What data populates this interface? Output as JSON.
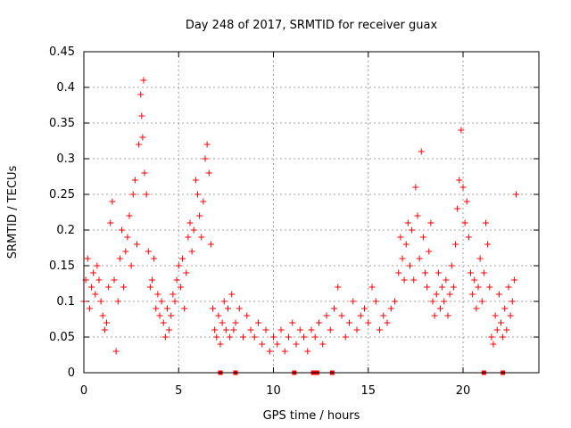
{
  "chart_data": {
    "type": "scatter",
    "title": "Day 248 of 2017, SRMTID for receiver guax",
    "xlabel": "GPS time / hours",
    "ylabel": "SRMTID / TECUs",
    "xlim": [
      0,
      24
    ],
    "ylim": [
      0,
      0.45
    ],
    "x_ticks": [
      0,
      5,
      10,
      15,
      20
    ],
    "y_ticks": [
      0,
      0.05,
      0.1,
      0.15,
      0.2,
      0.25,
      0.3,
      0.35,
      0.4,
      0.45
    ],
    "x_tick_labels": [
      "0",
      "5",
      "10",
      "15",
      "20"
    ],
    "y_tick_labels": [
      "0",
      "0.05",
      "0.1",
      "0.15",
      "0.2",
      "0.25",
      "0.3",
      "0.35",
      "0.4",
      "0.45"
    ],
    "grid": true,
    "marker": "+",
    "color": "#ff0000",
    "square_marker_x": [
      7.2,
      8.0,
      11.1,
      12.1,
      12.3,
      13.1,
      21.1,
      22.1
    ],
    "square_marker_y": 0,
    "series": [
      {
        "name": "SRMTID",
        "points": [
          [
            0.0,
            0.1
          ],
          [
            0.1,
            0.13
          ],
          [
            0.2,
            0.16
          ],
          [
            0.3,
            0.09
          ],
          [
            0.4,
            0.12
          ],
          [
            0.5,
            0.14
          ],
          [
            0.6,
            0.11
          ],
          [
            0.7,
            0.15
          ],
          [
            0.8,
            0.13
          ],
          [
            0.9,
            0.1
          ],
          [
            1.0,
            0.08
          ],
          [
            1.1,
            0.06
          ],
          [
            1.2,
            0.07
          ],
          [
            1.3,
            0.12
          ],
          [
            1.4,
            0.21
          ],
          [
            1.5,
            0.24
          ],
          [
            1.6,
            0.13
          ],
          [
            1.7,
            0.03
          ],
          [
            1.8,
            0.1
          ],
          [
            1.9,
            0.16
          ],
          [
            2.0,
            0.2
          ],
          [
            2.1,
            0.12
          ],
          [
            2.2,
            0.17
          ],
          [
            2.3,
            0.19
          ],
          [
            2.4,
            0.22
          ],
          [
            2.5,
            0.15
          ],
          [
            2.6,
            0.25
          ],
          [
            2.7,
            0.27
          ],
          [
            2.8,
            0.18
          ],
          [
            2.9,
            0.32
          ],
          [
            3.0,
            0.39
          ],
          [
            3.05,
            0.36
          ],
          [
            3.1,
            0.33
          ],
          [
            3.15,
            0.41
          ],
          [
            3.2,
            0.28
          ],
          [
            3.3,
            0.25
          ],
          [
            3.4,
            0.17
          ],
          [
            3.5,
            0.12
          ],
          [
            3.6,
            0.13
          ],
          [
            3.7,
            0.16
          ],
          [
            3.8,
            0.09
          ],
          [
            3.9,
            0.11
          ],
          [
            4.0,
            0.08
          ],
          [
            4.1,
            0.1
          ],
          [
            4.2,
            0.07
          ],
          [
            4.3,
            0.05
          ],
          [
            4.4,
            0.09
          ],
          [
            4.5,
            0.06
          ],
          [
            4.6,
            0.08
          ],
          [
            4.7,
            0.11
          ],
          [
            4.8,
            0.1
          ],
          [
            4.9,
            0.13
          ],
          [
            5.0,
            0.15
          ],
          [
            5.1,
            0.12
          ],
          [
            5.2,
            0.16
          ],
          [
            5.3,
            0.09
          ],
          [
            5.4,
            0.14
          ],
          [
            5.5,
            0.19
          ],
          [
            5.6,
            0.21
          ],
          [
            5.7,
            0.17
          ],
          [
            5.8,
            0.2
          ],
          [
            5.9,
            0.27
          ],
          [
            6.0,
            0.25
          ],
          [
            6.1,
            0.22
          ],
          [
            6.2,
            0.19
          ],
          [
            6.3,
            0.24
          ],
          [
            6.4,
            0.3
          ],
          [
            6.5,
            0.32
          ],
          [
            6.6,
            0.28
          ],
          [
            6.7,
            0.18
          ],
          [
            6.8,
            0.09
          ],
          [
            6.9,
            0.06
          ],
          [
            7.0,
            0.05
          ],
          [
            7.1,
            0.08
          ],
          [
            7.2,
            0.04
          ],
          [
            7.3,
            0.07
          ],
          [
            7.4,
            0.1
          ],
          [
            7.5,
            0.06
          ],
          [
            7.6,
            0.09
          ],
          [
            7.7,
            0.05
          ],
          [
            7.8,
            0.11
          ],
          [
            7.9,
            0.06
          ],
          [
            8.0,
            0.07
          ],
          [
            8.2,
            0.09
          ],
          [
            8.4,
            0.05
          ],
          [
            8.6,
            0.08
          ],
          [
            8.8,
            0.06
          ],
          [
            9.0,
            0.05
          ],
          [
            9.2,
            0.07
          ],
          [
            9.4,
            0.04
          ],
          [
            9.6,
            0.06
          ],
          [
            9.8,
            0.03
          ],
          [
            10.0,
            0.05
          ],
          [
            10.2,
            0.04
          ],
          [
            10.4,
            0.06
          ],
          [
            10.6,
            0.03
          ],
          [
            10.8,
            0.05
          ],
          [
            11.0,
            0.07
          ],
          [
            11.2,
            0.04
          ],
          [
            11.4,
            0.06
          ],
          [
            11.6,
            0.05
          ],
          [
            11.8,
            0.03
          ],
          [
            12.0,
            0.06
          ],
          [
            12.2,
            0.05
          ],
          [
            12.4,
            0.07
          ],
          [
            12.6,
            0.04
          ],
          [
            12.8,
            0.08
          ],
          [
            13.0,
            0.06
          ],
          [
            13.2,
            0.09
          ],
          [
            13.4,
            0.12
          ],
          [
            13.6,
            0.08
          ],
          [
            13.8,
            0.05
          ],
          [
            14.0,
            0.07
          ],
          [
            14.2,
            0.1
          ],
          [
            14.4,
            0.06
          ],
          [
            14.6,
            0.08
          ],
          [
            14.8,
            0.09
          ],
          [
            15.0,
            0.07
          ],
          [
            15.2,
            0.12
          ],
          [
            15.4,
            0.1
          ],
          [
            15.6,
            0.06
          ],
          [
            15.8,
            0.08
          ],
          [
            16.0,
            0.07
          ],
          [
            16.2,
            0.09
          ],
          [
            16.4,
            0.1
          ],
          [
            16.6,
            0.14
          ],
          [
            16.7,
            0.19
          ],
          [
            16.8,
            0.16
          ],
          [
            16.9,
            0.13
          ],
          [
            17.0,
            0.18
          ],
          [
            17.1,
            0.21
          ],
          [
            17.2,
            0.15
          ],
          [
            17.3,
            0.2
          ],
          [
            17.4,
            0.13
          ],
          [
            17.5,
            0.26
          ],
          [
            17.6,
            0.22
          ],
          [
            17.7,
            0.16
          ],
          [
            17.8,
            0.31
          ],
          [
            17.9,
            0.19
          ],
          [
            18.0,
            0.14
          ],
          [
            18.1,
            0.12
          ],
          [
            18.2,
            0.17
          ],
          [
            18.3,
            0.21
          ],
          [
            18.4,
            0.1
          ],
          [
            18.5,
            0.08
          ],
          [
            18.6,
            0.11
          ],
          [
            18.7,
            0.14
          ],
          [
            18.8,
            0.09
          ],
          [
            18.9,
            0.12
          ],
          [
            19.0,
            0.1
          ],
          [
            19.1,
            0.13
          ],
          [
            19.2,
            0.08
          ],
          [
            19.3,
            0.11
          ],
          [
            19.4,
            0.15
          ],
          [
            19.5,
            0.12
          ],
          [
            19.6,
            0.18
          ],
          [
            19.7,
            0.23
          ],
          [
            19.8,
            0.27
          ],
          [
            19.9,
            0.34
          ],
          [
            20.0,
            0.26
          ],
          [
            20.1,
            0.21
          ],
          [
            20.2,
            0.24
          ],
          [
            20.3,
            0.19
          ],
          [
            20.4,
            0.14
          ],
          [
            20.5,
            0.11
          ],
          [
            20.6,
            0.13
          ],
          [
            20.7,
            0.09
          ],
          [
            20.8,
            0.12
          ],
          [
            20.9,
            0.16
          ],
          [
            21.0,
            0.1
          ],
          [
            21.1,
            0.14
          ],
          [
            21.2,
            0.21
          ],
          [
            21.3,
            0.18
          ],
          [
            21.4,
            0.12
          ],
          [
            21.5,
            0.05
          ],
          [
            21.6,
            0.04
          ],
          [
            21.7,
            0.08
          ],
          [
            21.8,
            0.06
          ],
          [
            21.9,
            0.11
          ],
          [
            22.0,
            0.07
          ],
          [
            22.1,
            0.05
          ],
          [
            22.2,
            0.09
          ],
          [
            22.3,
            0.06
          ],
          [
            22.4,
            0.12
          ],
          [
            22.5,
            0.08
          ],
          [
            22.6,
            0.1
          ],
          [
            22.7,
            0.13
          ],
          [
            22.8,
            0.25
          ]
        ]
      }
    ]
  }
}
